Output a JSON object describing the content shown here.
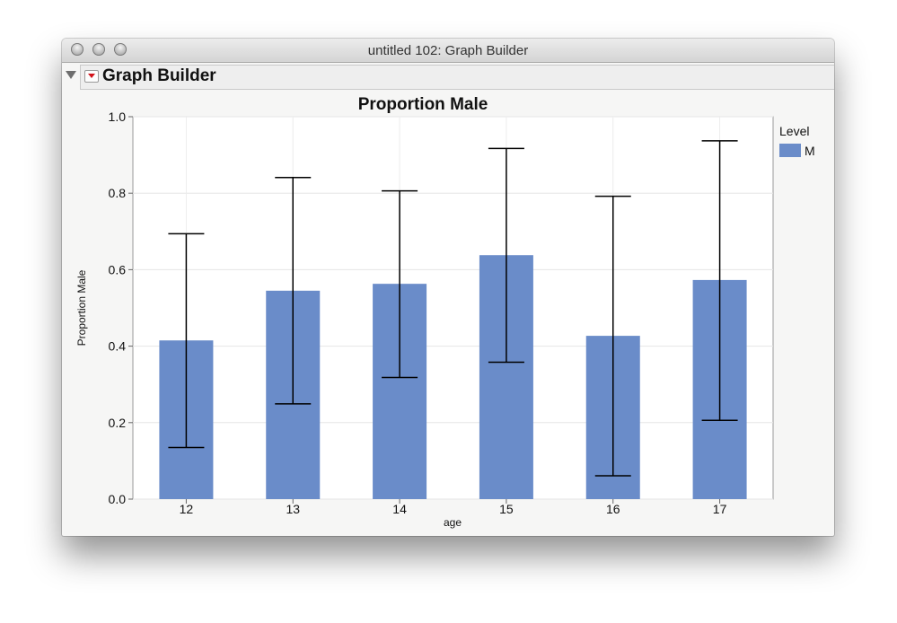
{
  "window": {
    "title": "untitled 102: Graph Builder"
  },
  "outline": {
    "title": "Graph Builder"
  },
  "chart_data": {
    "type": "bar",
    "title": "Proportion Male",
    "xlabel": "age",
    "ylabel": "Proportion Male",
    "categories": [
      "12",
      "13",
      "14",
      "15",
      "16",
      "17"
    ],
    "ylim": [
      0,
      1
    ],
    "yticks": [
      "0.0",
      "0.2",
      "0.4",
      "0.6",
      "0.8",
      "1.0"
    ],
    "grid": true,
    "series": [
      {
        "name": "M",
        "color": "#6a8cc9",
        "values": [
          0.415,
          0.545,
          0.563,
          0.638,
          0.427,
          0.573
        ],
        "error_low": [
          0.135,
          0.249,
          0.318,
          0.358,
          0.061,
          0.206
        ],
        "error_high": [
          0.694,
          0.841,
          0.806,
          0.917,
          0.792,
          0.937
        ]
      }
    ],
    "legend": {
      "title": "Level",
      "position": "top-right"
    }
  }
}
